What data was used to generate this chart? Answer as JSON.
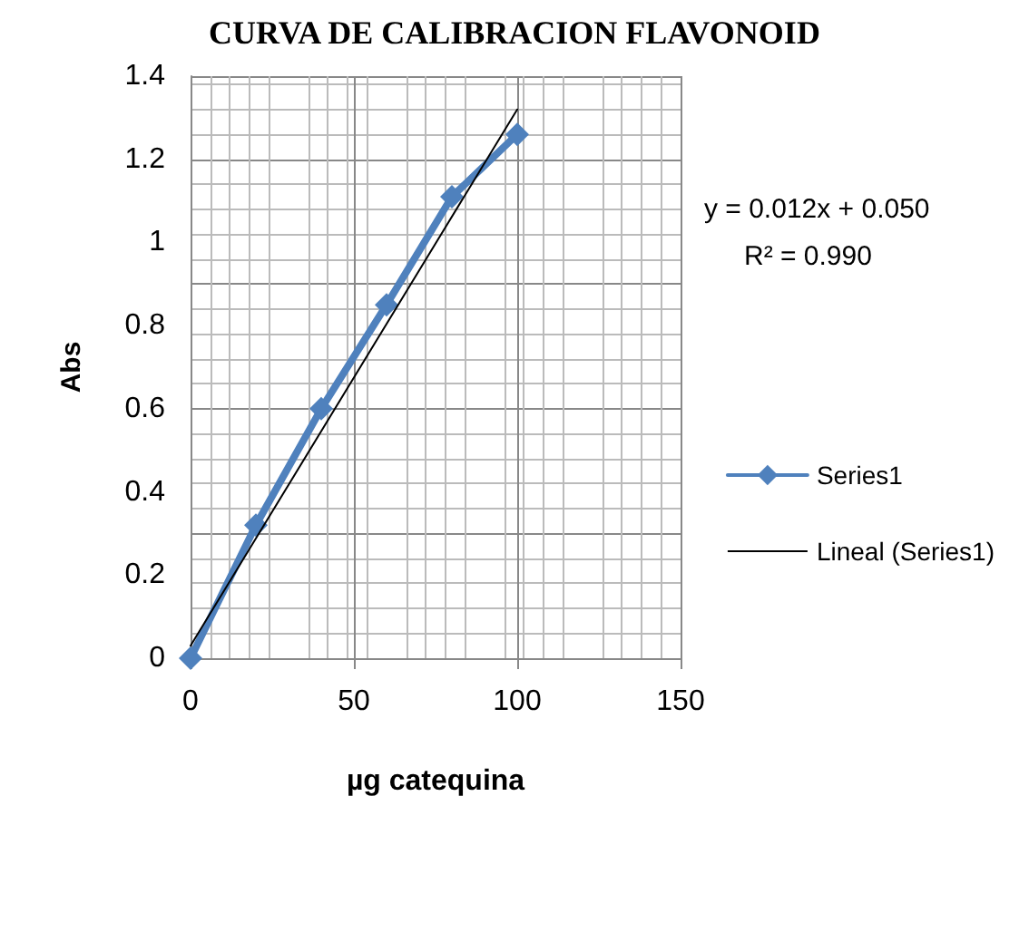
{
  "chart_data": {
    "type": "line",
    "title": "CURVA DE CALIBRACION FLAVONOID",
    "xlabel": "µg catequina",
    "ylabel": "Abs",
    "x": [
      0,
      20,
      40,
      60,
      80,
      100
    ],
    "series": [
      {
        "name": "Series1",
        "color": "#4f81bd",
        "values": [
          0,
          0.32,
          0.6,
          0.85,
          1.11,
          1.26
        ],
        "marker": "diamond"
      },
      {
        "name": "Lineal (Series1)",
        "color": "#000000",
        "x": [
          0,
          100
        ],
        "values": [
          0.03,
          1.32
        ],
        "marker": "none"
      }
    ],
    "xlim": [
      0,
      150
    ],
    "xticks": [
      0,
      50,
      100,
      150
    ],
    "ylim": [
      0,
      1.4
    ],
    "yticks": [
      0,
      0.2,
      0.4,
      0.6,
      0.8,
      1,
      1.2,
      1.4
    ],
    "grid": true,
    "legend": "right",
    "annotations": [
      "y = 0.012x + 0.050",
      "R² = 0.990"
    ]
  }
}
